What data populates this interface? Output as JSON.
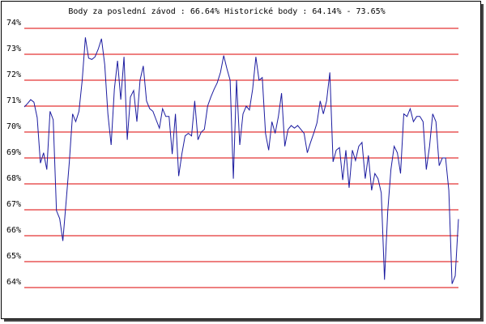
{
  "chart_data": {
    "type": "line",
    "title": "Body za poslední závod : 66.64%  Historické body : 64.14% - 73.65%",
    "color": "#1c1ca0",
    "grid": true,
    "grid_color": "#dd0000",
    "ylim": [
      64,
      74
    ],
    "yticks": [
      {
        "value": 64,
        "label": "64%"
      },
      {
        "value": 65,
        "label": "65%"
      },
      {
        "value": 66,
        "label": "66%"
      },
      {
        "value": 67,
        "label": "67%"
      },
      {
        "value": 68,
        "label": "68%"
      },
      {
        "value": 69,
        "label": "69%"
      },
      {
        "value": 70,
        "label": "70%"
      },
      {
        "value": 71,
        "label": "71%"
      },
      {
        "value": 72,
        "label": "72%"
      },
      {
        "value": 73,
        "label": "73%"
      },
      {
        "value": 74,
        "label": "74%"
      }
    ],
    "values": [
      70.97,
      71.1,
      71.25,
      71.15,
      70.56,
      68.8,
      69.2,
      68.55,
      70.8,
      70.47,
      66.97,
      66.66,
      65.8,
      67.3,
      68.85,
      70.7,
      70.4,
      70.8,
      72.0,
      73.65,
      72.85,
      72.8,
      72.9,
      73.2,
      73.6,
      72.6,
      70.7,
      69.5,
      71.65,
      72.75,
      71.25,
      72.9,
      69.7,
      71.35,
      71.6,
      70.4,
      72.0,
      72.55,
      71.2,
      70.9,
      70.8,
      70.47,
      70.15,
      70.9,
      70.6,
      70.6,
      69.15,
      70.7,
      68.3,
      69.15,
      69.85,
      69.95,
      69.85,
      71.2,
      69.7,
      70.0,
      70.1,
      71.0,
      71.35,
      71.65,
      71.9,
      72.3,
      72.95,
      72.45,
      72.0,
      68.2,
      72.0,
      69.5,
      70.7,
      71.0,
      70.85,
      71.65,
      72.9,
      72.0,
      72.1,
      69.95,
      69.3,
      70.4,
      69.95,
      70.6,
      71.5,
      69.45,
      70.1,
      70.25,
      70.15,
      70.25,
      70.1,
      69.95,
      69.2,
      69.6,
      69.95,
      70.35,
      71.2,
      70.7,
      71.2,
      72.3,
      68.85,
      69.3,
      69.4,
      68.15,
      69.3,
      67.85,
      69.3,
      68.9,
      69.45,
      69.6,
      68.2,
      69.1,
      67.75,
      68.4,
      68.2,
      67.65,
      64.3,
      66.95,
      68.55,
      69.45,
      69.2,
      68.4,
      70.7,
      70.6,
      70.9,
      70.4,
      70.6,
      70.6,
      70.4,
      68.55,
      69.45,
      70.7,
      70.4,
      68.7,
      69.0,
      69.0,
      67.75,
      64.14,
      64.45,
      66.64
    ]
  }
}
